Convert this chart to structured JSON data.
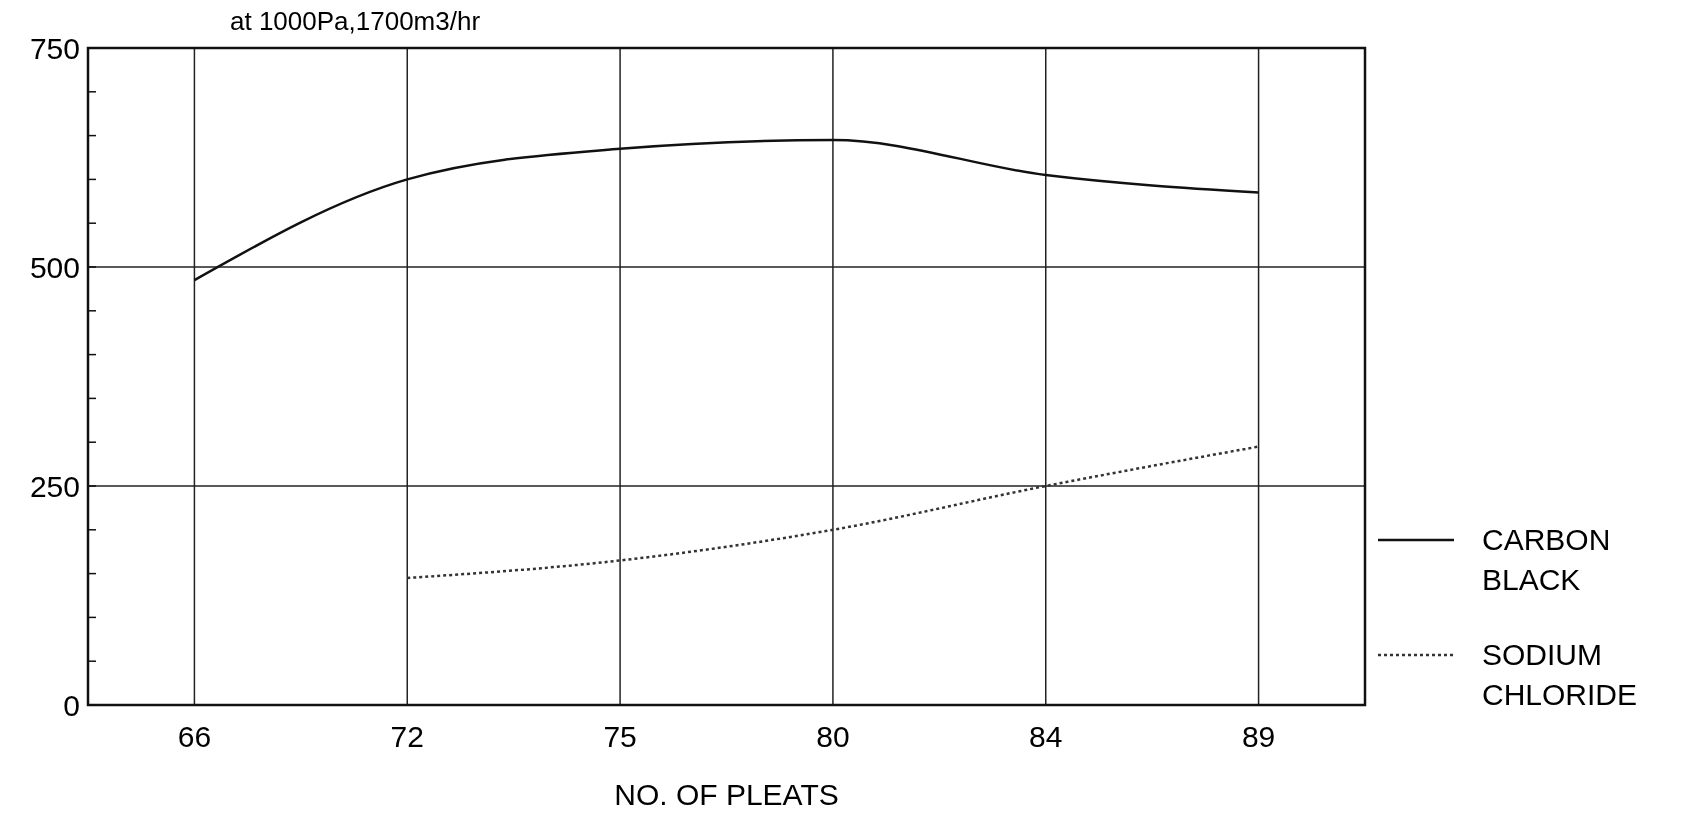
{
  "chart_data": {
    "type": "line",
    "title": "at 1000Pa,1700m3/hr",
    "xlabel": "NO. OF PLEATS",
    "categories": [
      "66",
      "72",
      "75",
      "80",
      "84",
      "89"
    ],
    "series": [
      {
        "name": "CARBON BLACK",
        "color": "#111111",
        "line_style": "solid",
        "values": [
          485,
          600,
          635,
          645,
          605,
          585
        ]
      },
      {
        "name": "SODIUM CHLORIDE",
        "color": "#333333",
        "line_style": "dotted",
        "values": [
          null,
          145,
          165,
          200,
          250,
          295
        ]
      }
    ],
    "ylim": [
      0,
      750
    ],
    "yticks": [
      0,
      {
        "value": 50,
        "label": null
      },
      {
        "value": 100,
        "label": null
      },
      {
        "value": 150,
        "label": null
      },
      {
        "value": 200,
        "label": null
      },
      250,
      {
        "value": 300,
        "label": null
      },
      {
        "value": 350,
        "label": null
      },
      {
        "value": 400,
        "label": null
      },
      {
        "value": 450,
        "label": null
      },
      500,
      {
        "value": 550,
        "label": null
      },
      {
        "value": 600,
        "label": null
      },
      {
        "value": 650,
        "label": null
      },
      {
        "value": 700,
        "label": null
      },
      750
    ],
    "grid": true,
    "legend": "right"
  }
}
